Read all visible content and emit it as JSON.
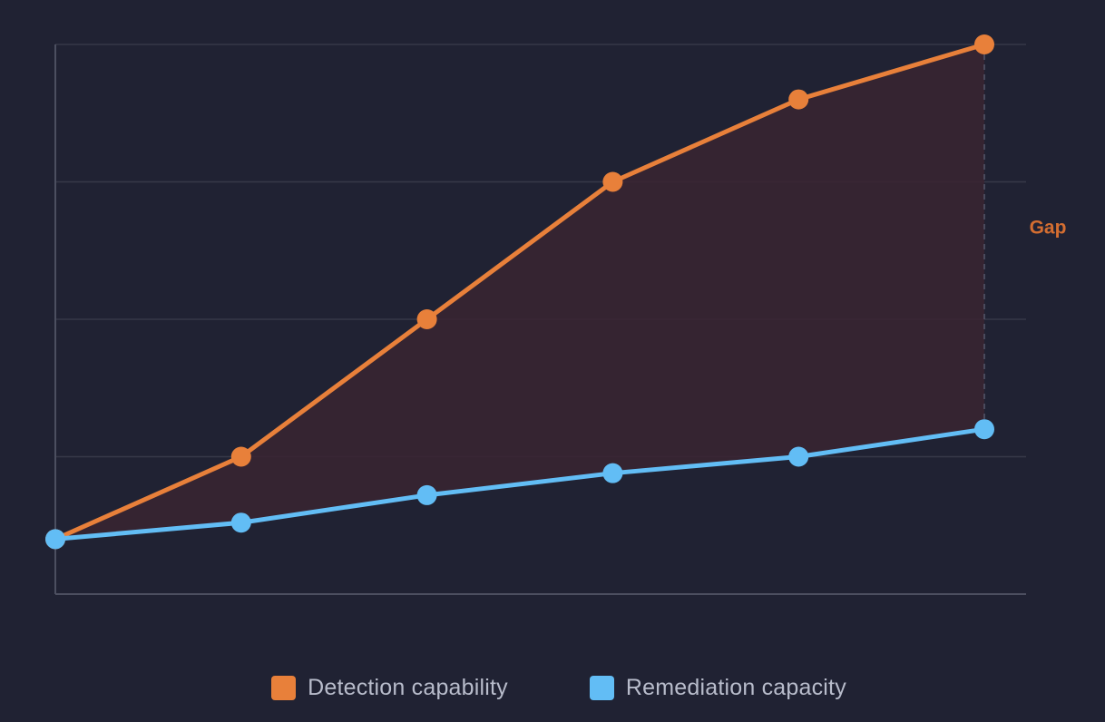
{
  "chart_data": {
    "type": "line",
    "title": "",
    "xlabel": "",
    "ylabel": "",
    "x": [
      0,
      1,
      2,
      3,
      4,
      5
    ],
    "ylim": [
      0,
      100
    ],
    "grid": true,
    "legend_position": "bottom-center",
    "series": [
      {
        "name": "Detection capability",
        "color": "#e8803a",
        "values": [
          10,
          25,
          50,
          75,
          90,
          100
        ]
      },
      {
        "name": "Remediation capacity",
        "color": "#62bdf5",
        "values": [
          10,
          13,
          18,
          22,
          25,
          30
        ]
      }
    ],
    "annotations": [
      {
        "label": "Gap",
        "color": "#d46e31"
      }
    ],
    "colors": {
      "background": "#202233",
      "gap_fill": "#3a2431",
      "grid": "#363848",
      "axis": "#4c4f60",
      "legend_text": "#b8bccb"
    }
  }
}
